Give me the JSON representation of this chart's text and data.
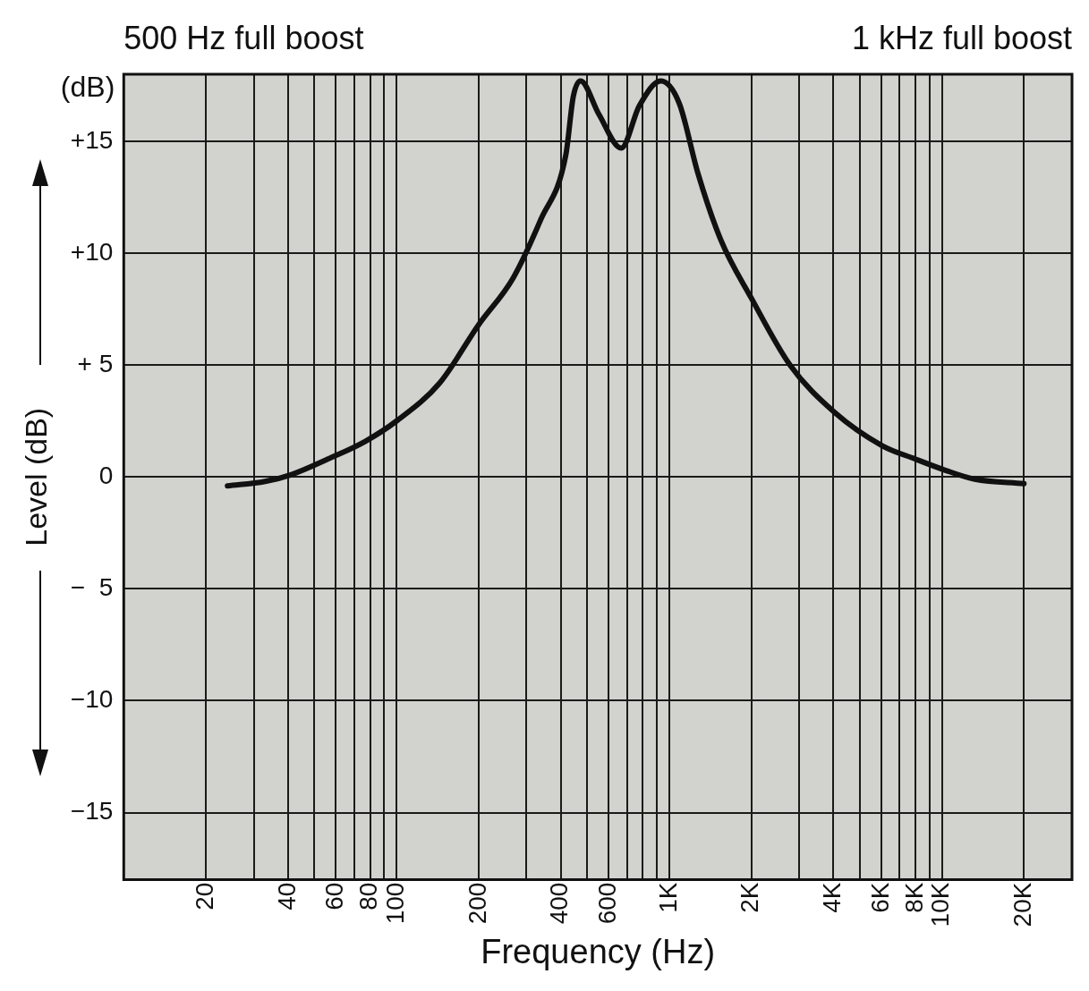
{
  "chart_data": {
    "type": "line",
    "xlabel": "Frequency (Hz)",
    "ylabel": "Level (dB)",
    "annotations": [
      "500 Hz full boost",
      "1 kHz full boost",
      "(dB)"
    ],
    "log": "x",
    "xlim": [
      10,
      30000
    ],
    "ylim": [
      -18,
      18
    ],
    "xticks": [
      20,
      {
        "value": 30,
        "label": null
      },
      40,
      {
        "value": 50,
        "label": null
      },
      60,
      {
        "value": 70,
        "label": null
      },
      80,
      {
        "value": 90,
        "label": null
      },
      100,
      200,
      {
        "value": 300,
        "label": null
      },
      400,
      {
        "value": 500,
        "label": null
      },
      600,
      {
        "value": 700,
        "label": null
      },
      {
        "value": 800,
        "label": null
      },
      {
        "value": 900,
        "label": null
      },
      {
        "value": 1000,
        "label": "1K"
      },
      {
        "value": 2000,
        "label": "2K"
      },
      {
        "value": 3000,
        "label": null
      },
      {
        "value": 4000,
        "label": "4K"
      },
      {
        "value": 5000,
        "label": null
      },
      {
        "value": 6000,
        "label": "6K"
      },
      {
        "value": 7000,
        "label": null
      },
      {
        "value": 8000,
        "label": "8K"
      },
      {
        "value": 9000,
        "label": null
      },
      {
        "value": 10000,
        "label": "10K"
      },
      {
        "value": 20000,
        "label": "20K"
      }
    ],
    "yticks": [
      {
        "value": -15,
        "label": "−15"
      },
      {
        "value": -10,
        "label": "−10"
      },
      {
        "value": -5,
        "label": "−  5"
      },
      0,
      {
        "value": 5,
        "label": "+ 5"
      },
      {
        "value": 10,
        "label": "+10"
      },
      {
        "value": 15,
        "label": "+15"
      }
    ],
    "grid": true,
    "legend": false,
    "marker": "none",
    "line_style": "solid",
    "series": [
      {
        "color": "#111111",
        "x": [
          24,
          33,
          41,
          56,
          77,
          100,
          144,
          200,
          268,
          338,
          418,
          445,
          473,
          553,
          667,
          778,
          932,
          1089,
          1273,
          1546,
          2000,
          2775,
          4030,
          6040,
          8000,
          10300,
          13200,
          20000
        ],
        "values": [
          -0.4,
          -0.2,
          0.1,
          0.8,
          1.6,
          2.5,
          4.2,
          6.8,
          8.9,
          11.5,
          14.4,
          17.0,
          17.7,
          16.2,
          14.7,
          16.6,
          17.7,
          16.7,
          13.6,
          10.6,
          8.0,
          5.0,
          2.9,
          1.4,
          0.8,
          0.3,
          -0.1,
          -0.3
        ]
      }
    ]
  }
}
